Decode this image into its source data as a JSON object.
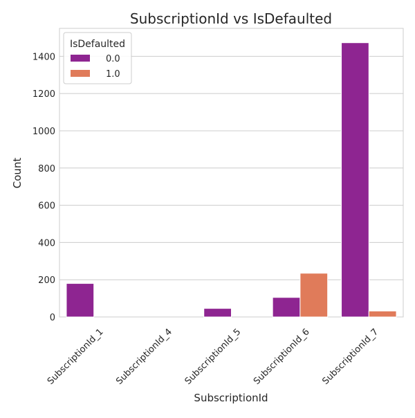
{
  "chart_data": {
    "type": "bar",
    "title": "SubscriptionId vs IsDefaulted",
    "xlabel": "SubscriptionId",
    "ylabel": "Count",
    "categories": [
      "SubscriptionId_1",
      "SubscriptionId_4",
      "SubscriptionId_5",
      "SubscriptionId_6",
      "SubscriptionId_7"
    ],
    "series": [
      {
        "name": "0.0",
        "color": "#8e2591",
        "values": [
          180,
          0,
          46,
          105,
          1473
        ]
      },
      {
        "name": "1.0",
        "color": "#e07b5a",
        "values": [
          0,
          0,
          0,
          235,
          32
        ]
      }
    ],
    "legend": {
      "title": "IsDefaulted",
      "placement": "top-left"
    },
    "ylim": [
      0,
      1550
    ],
    "yticks": [
      0,
      200,
      400,
      600,
      800,
      1000,
      1200,
      1400
    ],
    "grid": "horizontal"
  }
}
